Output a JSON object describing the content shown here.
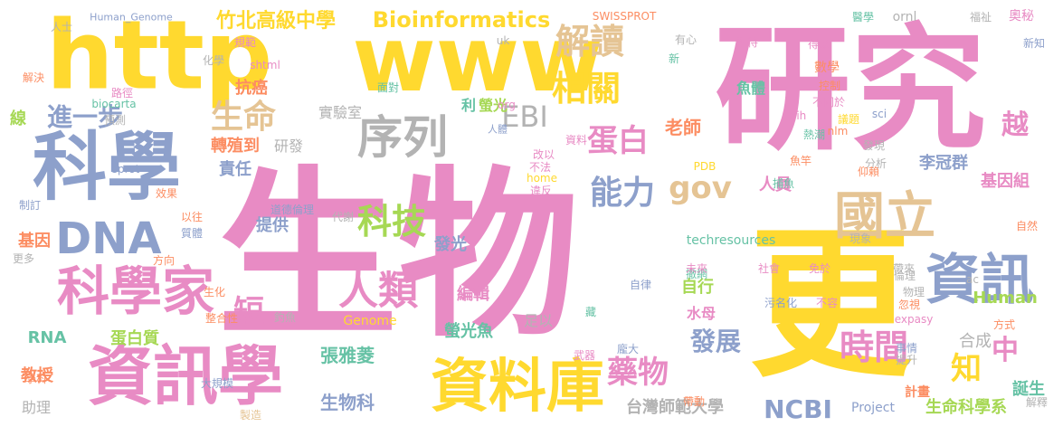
{
  "palette": {
    "pink": "#E88BC4",
    "yellow": "#FFD92F",
    "blue": "#8DA0CB",
    "green": "#A6D854",
    "teal": "#66C2A5",
    "orange": "#FC8D62",
    "tan": "#E5C494",
    "gray": "#B3B3B3"
  },
  "words": [
    {
      "text": "生物",
      "color": "pink"
    },
    {
      "text": "研究",
      "color": "pink"
    },
    {
      "text": "更",
      "color": "yellow"
    },
    {
      "text": "http",
      "color": "yellow"
    },
    {
      "text": "www",
      "color": "yellow"
    },
    {
      "text": "科學",
      "color": "blue"
    },
    {
      "text": "資訊學",
      "color": "pink"
    },
    {
      "text": "資料庫",
      "color": "yellow"
    },
    {
      "text": "科學家",
      "color": "pink"
    },
    {
      "text": "資訊",
      "color": "blue"
    },
    {
      "text": "序列",
      "color": "gray"
    },
    {
      "text": "DNA",
      "color": "blue"
    },
    {
      "text": "國立",
      "color": "tan"
    },
    {
      "text": "人類",
      "color": "pink"
    },
    {
      "text": "相關",
      "color": "yellow"
    },
    {
      "text": "解讀",
      "color": "tan"
    },
    {
      "text": "生命",
      "color": "tan"
    },
    {
      "text": "蛋白",
      "color": "pink"
    },
    {
      "text": "科技",
      "color": "green"
    },
    {
      "text": "時間",
      "color": "pink"
    },
    {
      "text": "能力",
      "color": "blue"
    },
    {
      "text": "藥物",
      "color": "pink"
    },
    {
      "text": "gov",
      "color": "tan"
    },
    {
      "text": "EBI",
      "color": "gray"
    },
    {
      "text": "進一步",
      "color": "blue"
    },
    {
      "text": "NCBI",
      "color": "blue"
    },
    {
      "text": "短",
      "color": "pink"
    },
    {
      "text": "知",
      "color": "yellow"
    },
    {
      "text": "中",
      "color": "pink"
    },
    {
      "text": "越",
      "color": "pink"
    },
    {
      "text": "Bioinformatics",
      "color": "yellow"
    },
    {
      "text": "竹北高級中學",
      "color": "yellow"
    },
    {
      "text": "生命科學系",
      "color": "green"
    },
    {
      "text": "發展",
      "color": "blue"
    },
    {
      "text": "台灣師範大學",
      "color": "gray"
    },
    {
      "text": "生物科",
      "color": "blue"
    },
    {
      "text": "張雅菱",
      "color": "teal"
    },
    {
      "text": "老師",
      "color": "orange"
    },
    {
      "text": "李冠群",
      "color": "blue"
    },
    {
      "text": "基因組",
      "color": "pink"
    },
    {
      "text": "人員",
      "color": "pink"
    },
    {
      "text": "提供",
      "color": "blue"
    },
    {
      "text": "發光",
      "color": "blue"
    },
    {
      "text": "螢光魚",
      "color": "teal"
    },
    {
      "text": "編輯",
      "color": "pink"
    },
    {
      "text": "抗癌",
      "color": "orange"
    },
    {
      "text": "實驗室",
      "color": "gray"
    },
    {
      "text": "轉殖到",
      "color": "orange"
    },
    {
      "text": "責任",
      "color": "blue"
    },
    {
      "text": "研發",
      "color": "gray"
    },
    {
      "text": "基因",
      "color": "orange"
    },
    {
      "text": "RNA",
      "color": "teal"
    },
    {
      "text": "蛋白質",
      "color": "green"
    },
    {
      "text": "教授",
      "color": "orange"
    },
    {
      "text": "助理",
      "color": "gray"
    },
    {
      "text": "合成",
      "color": "gray"
    },
    {
      "text": "誕生",
      "color": "teal"
    },
    {
      "text": "計畫",
      "color": "orange"
    },
    {
      "text": "自行",
      "color": "green"
    },
    {
      "text": "水母",
      "color": "pink"
    },
    {
      "text": "Human",
      "color": "green"
    },
    {
      "text": "Genome",
      "color": "yellow"
    },
    {
      "text": "Project",
      "color": "blue"
    },
    {
      "text": "techresources",
      "color": "teal"
    },
    {
      "text": "螢光",
      "color": "green"
    },
    {
      "text": "利",
      "color": "teal"
    },
    {
      "text": "魚體",
      "color": "teal"
    },
    {
      "text": "足以",
      "color": "gray"
    },
    {
      "text": "線",
      "color": "green"
    },
    {
      "text": "Human_Genome",
      "color": "blue"
    },
    {
      "text": "SWISSPROT",
      "color": "orange"
    },
    {
      "text": "奧秘",
      "color": "pink"
    },
    {
      "text": "醫學",
      "color": "teal"
    },
    {
      "text": "ornl",
      "color": "gray"
    },
    {
      "text": "福祉",
      "color": "gray"
    },
    {
      "text": "人士",
      "color": "gray"
    },
    {
      "text": "規範",
      "color": "pink"
    },
    {
      "text": "uk",
      "color": "gray"
    },
    {
      "text": "期待",
      "color": "pink"
    },
    {
      "text": "得以",
      "color": "pink"
    },
    {
      "text": "數學",
      "color": "orange"
    },
    {
      "text": "新知",
      "color": "blue"
    },
    {
      "text": "有心",
      "color": "gray"
    },
    {
      "text": "新",
      "color": "teal"
    },
    {
      "text": "化學",
      "color": "gray"
    },
    {
      "text": "shtml",
      "color": "pink"
    },
    {
      "text": "解決",
      "color": "orange"
    },
    {
      "text": "路徑",
      "color": "pink"
    },
    {
      "text": "控制",
      "color": "orange"
    },
    {
      "text": "面對",
      "color": "teal"
    },
    {
      "text": "不同於",
      "color": "pink"
    },
    {
      "text": "biocarta",
      "color": "teal"
    },
    {
      "text": "預測",
      "color": "gray"
    },
    {
      "text": "org",
      "color": "pink"
    },
    {
      "text": "nih",
      "color": "pink"
    },
    {
      "text": "議題",
      "color": "yellow"
    },
    {
      "text": "nlm",
      "color": "orange"
    },
    {
      "text": "sci",
      "color": "blue"
    },
    {
      "text": "熱潮",
      "color": "teal"
    },
    {
      "text": "人體",
      "color": "blue"
    },
    {
      "text": "資料",
      "color": "pink"
    },
    {
      "text": "改以",
      "color": "pink"
    },
    {
      "text": "發現",
      "color": "gray"
    },
    {
      "text": "分析",
      "color": "gray"
    },
    {
      "text": "魚竿",
      "color": "orange"
    },
    {
      "text": "PDB",
      "color": "yellow"
    },
    {
      "text": "仰賴",
      "color": "orange"
    },
    {
      "text": "不法",
      "color": "pink"
    },
    {
      "text": "home",
      "color": "yellow"
    },
    {
      "text": "違反",
      "color": "pink"
    },
    {
      "text": "sprot",
      "color": "blue"
    },
    {
      "text": "效果",
      "color": "orange"
    },
    {
      "text": "制訂",
      "color": "blue"
    },
    {
      "text": "道德倫理",
      "color": "blue"
    },
    {
      "text": "代謝",
      "color": "gray"
    },
    {
      "text": "以往",
      "color": "orange"
    },
    {
      "text": "質體",
      "color": "blue"
    },
    {
      "text": "捕魚",
      "color": "teal"
    },
    {
      "text": "自然",
      "color": "orange"
    },
    {
      "text": "更多",
      "color": "gray"
    },
    {
      "text": "方向",
      "color": "orange"
    },
    {
      "text": "現象",
      "color": "gray"
    },
    {
      "text": "帶來",
      "color": "gray"
    },
    {
      "text": "倫理",
      "color": "gray"
    },
    {
      "text": "撤網",
      "color": "teal"
    },
    {
      "text": "未來",
      "color": "pink"
    },
    {
      "text": "社會",
      "color": "pink"
    },
    {
      "text": "免於",
      "color": "pink"
    },
    {
      "text": "ac",
      "color": "gray"
    },
    {
      "text": "生化",
      "color": "orange"
    },
    {
      "text": "整合性",
      "color": "orange"
    },
    {
      "text": "釣魚",
      "color": "gray"
    },
    {
      "text": "自律",
      "color": "blue"
    },
    {
      "text": "污名化",
      "color": "blue"
    },
    {
      "text": "不容",
      "color": "pink"
    },
    {
      "text": "物理",
      "color": "gray"
    },
    {
      "text": "忽視",
      "color": "orange"
    },
    {
      "text": "藏",
      "color": "teal"
    },
    {
      "text": "expasy",
      "color": "pink"
    },
    {
      "text": "方式",
      "color": "orange"
    },
    {
      "text": "武器",
      "color": "pink"
    },
    {
      "text": "龐大",
      "color": "blue"
    },
    {
      "text": "事情",
      "color": "blue"
    },
    {
      "text": "提升",
      "color": "gray"
    },
    {
      "text": "學科",
      "color": "orange"
    },
    {
      "text": "大規模",
      "color": "blue"
    },
    {
      "text": "帶動",
      "color": "orange"
    },
    {
      "text": "解釋",
      "color": "gray"
    },
    {
      "text": "製造",
      "color": "tan"
    }
  ]
}
